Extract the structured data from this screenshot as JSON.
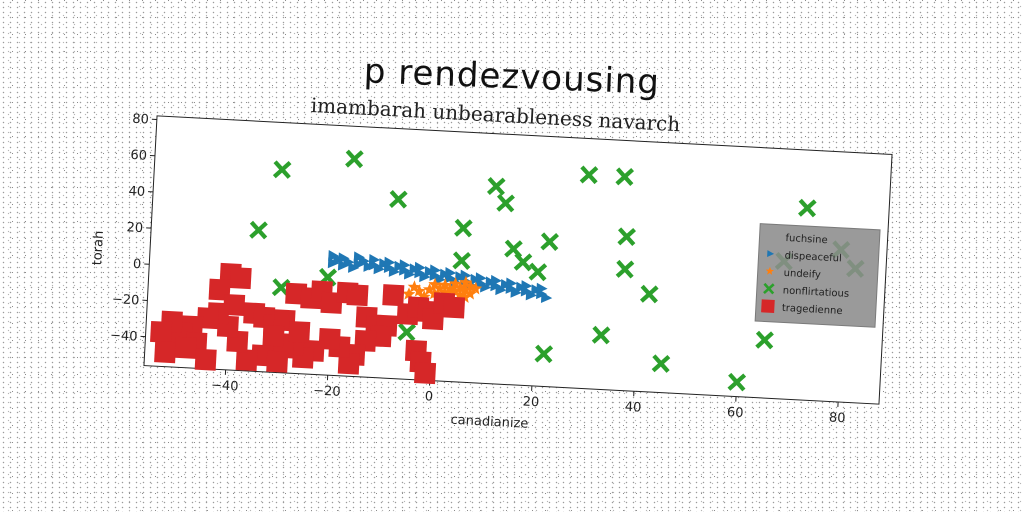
{
  "chart_data": {
    "type": "scatter",
    "title": "p rendezvousing",
    "subtitle": "imambarah unbearableness navarch",
    "xlabel": "canadianize",
    "ylabel": "torah",
    "xlim": [
      -56,
      88
    ],
    "ylim": [
      -56,
      82
    ],
    "xticks": [
      -40,
      -20,
      0,
      20,
      40,
      60,
      80
    ],
    "yticks": [
      -40,
      -20,
      0,
      20,
      40,
      60,
      80
    ],
    "xtick_labels": [
      "−40",
      "−20",
      "0",
      "20",
      "40",
      "60",
      "80"
    ],
    "ytick_labels": [
      "−40",
      "−20",
      "0",
      "20",
      "40",
      "60",
      "80"
    ],
    "grid": false,
    "legend_position": "right",
    "series": [
      {
        "name": "fuchsine",
        "marker": "none",
        "color": "#1f77b4",
        "points": []
      },
      {
        "name": "dispeaceful",
        "marker": "triangle-right",
        "color": "#1f77b4",
        "points": [
          [
            -20,
            6
          ],
          [
            -19,
            8
          ],
          [
            -18,
            5
          ],
          [
            -17,
            7
          ],
          [
            -16,
            4
          ],
          [
            -15,
            6
          ],
          [
            -14,
            8
          ],
          [
            -13,
            5
          ],
          [
            -12,
            6
          ],
          [
            -11,
            4
          ],
          [
            -10,
            7
          ],
          [
            -9,
            5
          ],
          [
            -8,
            3
          ],
          [
            -7,
            6
          ],
          [
            -6,
            4
          ],
          [
            -5,
            2
          ],
          [
            -4,
            5
          ],
          [
            -3,
            3
          ],
          [
            -2,
            1
          ],
          [
            -1,
            4
          ],
          [
            0,
            2
          ],
          [
            1,
            0
          ],
          [
            2,
            3
          ],
          [
            3,
            1
          ],
          [
            4,
            -1
          ],
          [
            5,
            2
          ],
          [
            6,
            0
          ],
          [
            7,
            -2
          ],
          [
            8,
            1
          ],
          [
            9,
            -1
          ],
          [
            10,
            -3
          ],
          [
            11,
            0
          ],
          [
            12,
            -2
          ],
          [
            13,
            -4
          ],
          [
            14,
            -1
          ],
          [
            15,
            -3
          ],
          [
            16,
            -5
          ],
          [
            17,
            -2
          ],
          [
            18,
            -4
          ],
          [
            19,
            -6
          ],
          [
            20,
            -3
          ],
          [
            21,
            -5
          ],
          [
            22,
            -7
          ],
          [
            -20,
            10
          ],
          [
            -18,
            9
          ],
          [
            -15,
            10
          ],
          [
            -12,
            9
          ],
          [
            -9,
            8
          ],
          [
            -6,
            7
          ],
          [
            -3,
            6
          ],
          [
            0,
            5
          ],
          [
            3,
            4
          ],
          [
            6,
            3
          ],
          [
            9,
            2
          ],
          [
            12,
            1
          ],
          [
            15,
            0
          ],
          [
            18,
            -1
          ],
          [
            21,
            -2
          ]
        ]
      },
      {
        "name": "undeify",
        "marker": "star",
        "color": "#ff7f0e",
        "points": [
          [
            -5,
            -9
          ],
          [
            -3,
            -7
          ],
          [
            -2,
            -10
          ],
          [
            -1,
            -6
          ],
          [
            0,
            -8
          ],
          [
            1,
            -5
          ],
          [
            1,
            -11
          ],
          [
            2,
            -7
          ],
          [
            2,
            -3
          ],
          [
            3,
            -9
          ],
          [
            3,
            -5
          ],
          [
            4,
            -6
          ],
          [
            4,
            -2
          ],
          [
            5,
            -8
          ],
          [
            5,
            -4
          ],
          [
            6,
            -5
          ],
          [
            6,
            -1
          ],
          [
            7,
            -7
          ],
          [
            7,
            -3
          ],
          [
            8,
            -4
          ],
          [
            -4,
            -5
          ],
          [
            0,
            -3
          ],
          [
            2,
            -12
          ],
          [
            6,
            -9
          ]
        ]
      },
      {
        "name": "nonflirtatious",
        "marker": "x-thick",
        "color": "#2ca02c",
        "points": [
          [
            -17,
            64
          ],
          [
            -31,
            56
          ],
          [
            -8,
            43
          ],
          [
            -35,
            22
          ],
          [
            -30,
            -9
          ],
          [
            -21,
            -2
          ],
          [
            -5,
            -30
          ],
          [
            5,
            29
          ],
          [
            5,
            11
          ],
          [
            11,
            53
          ],
          [
            13,
            44
          ],
          [
            15,
            19
          ],
          [
            17,
            12
          ],
          [
            20,
            7
          ],
          [
            22,
            24
          ],
          [
            22,
            -38
          ],
          [
            29,
            62
          ],
          [
            36,
            62
          ],
          [
            37,
            29
          ],
          [
            37,
            11
          ],
          [
            33,
            -26
          ],
          [
            42,
            -2
          ],
          [
            45,
            -40
          ],
          [
            60,
            -48
          ],
          [
            65,
            -24
          ],
          [
            68,
            20
          ],
          [
            72,
            50
          ],
          [
            79,
            28
          ],
          [
            82,
            18
          ]
        ]
      },
      {
        "name": "tragedienne",
        "marker": "square",
        "color": "#d62728",
        "points": [
          [
            -40,
            -3
          ],
          [
            -38,
            -5
          ],
          [
            -42,
            -12
          ],
          [
            -39,
            -20
          ],
          [
            -35,
            -24
          ],
          [
            -33,
            -26
          ],
          [
            -31,
            -30
          ],
          [
            -29,
            -27
          ],
          [
            -27,
            -12
          ],
          [
            -24,
            -14
          ],
          [
            -22,
            -10
          ],
          [
            -20,
            -16
          ],
          [
            -17,
            -10
          ],
          [
            -15,
            -11
          ],
          [
            -13,
            -23
          ],
          [
            -11,
            -28
          ],
          [
            -9,
            -27
          ],
          [
            -10,
            -33
          ],
          [
            -13,
            -36
          ],
          [
            -15,
            -44
          ],
          [
            -16,
            -49
          ],
          [
            -18,
            -40
          ],
          [
            -20,
            -36
          ],
          [
            -23,
            -43
          ],
          [
            -25,
            -47
          ],
          [
            -27,
            -40
          ],
          [
            -29,
            -42
          ],
          [
            -31,
            -36
          ],
          [
            -33,
            -47
          ],
          [
            -36,
            -50
          ],
          [
            -38,
            -40
          ],
          [
            -40,
            -32
          ],
          [
            -42,
            -25
          ],
          [
            -44,
            -28
          ],
          [
            -47,
            -33
          ],
          [
            -49,
            -37
          ],
          [
            -51,
            -31
          ],
          [
            -53,
            -37
          ],
          [
            -52,
            -48
          ],
          [
            -46,
            -42
          ],
          [
            -8,
            -10
          ],
          [
            -5,
            -20
          ],
          [
            -3,
            -16
          ],
          [
            -1,
            -18
          ],
          [
            0,
            -22
          ],
          [
            2,
            -13
          ],
          [
            4,
            -15
          ],
          [
            -3,
            -40
          ],
          [
            -2,
            -46
          ],
          [
            -1,
            -52
          ],
          [
            -26,
            -33
          ],
          [
            -30,
            -50
          ],
          [
            -48,
            -45
          ],
          [
            -44,
            -51
          ]
        ]
      }
    ]
  }
}
